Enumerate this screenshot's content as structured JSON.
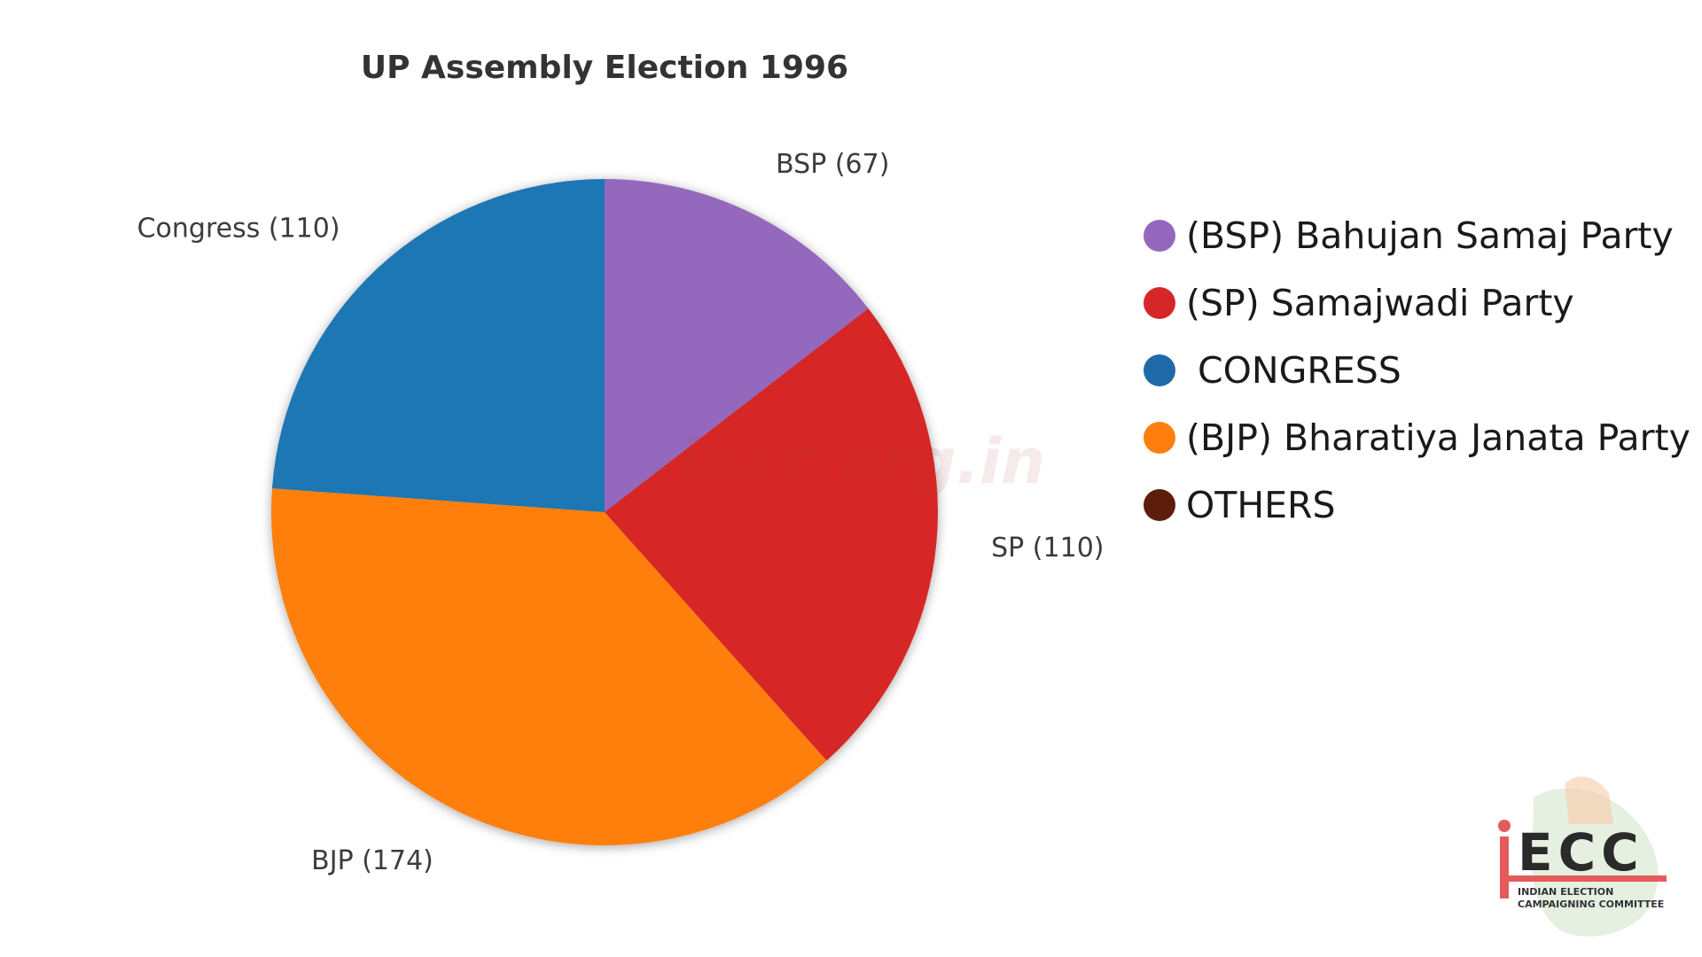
{
  "chart_data": {
    "type": "pie",
    "title": "UP Assembly Election 1996",
    "slices": [
      {
        "name": "BSP",
        "label": "BSP (67)",
        "value": 67,
        "color": "#9467bd"
      },
      {
        "name": "SP",
        "label": "SP (110)",
        "value": 110,
        "color": "#d62728"
      },
      {
        "name": "BJP",
        "label": "BJP (174)",
        "value": 174,
        "color": "#ff7f0e"
      },
      {
        "name": "Congress",
        "label": "Congress (110)",
        "value": 110,
        "color": "#1f77b4"
      }
    ],
    "start_angle": "top (12 o'clock), clockwise",
    "legend_position": "right",
    "legend": [
      {
        "label": "(BSP) Bahujan Samaj Party",
        "color": "#9467bd"
      },
      {
        "label": "(SP) Samajwadi Party",
        "color": "#d62728"
      },
      {
        "label": " CONGRESS",
        "color": "#1f69a8"
      },
      {
        "label": "(BJP) Bharatiya Janata Party",
        "color": "#ff7f0e"
      },
      {
        "label": "OTHERS",
        "color": "#5c1e0a"
      }
    ]
  },
  "watermark": "iecc.org.in",
  "logo": {
    "letters": "ECC",
    "line1": "INDIAN ELECTION",
    "line2": "CAMPAIGNING COMMITTEE",
    "accent_color": "#e35b5b"
  }
}
